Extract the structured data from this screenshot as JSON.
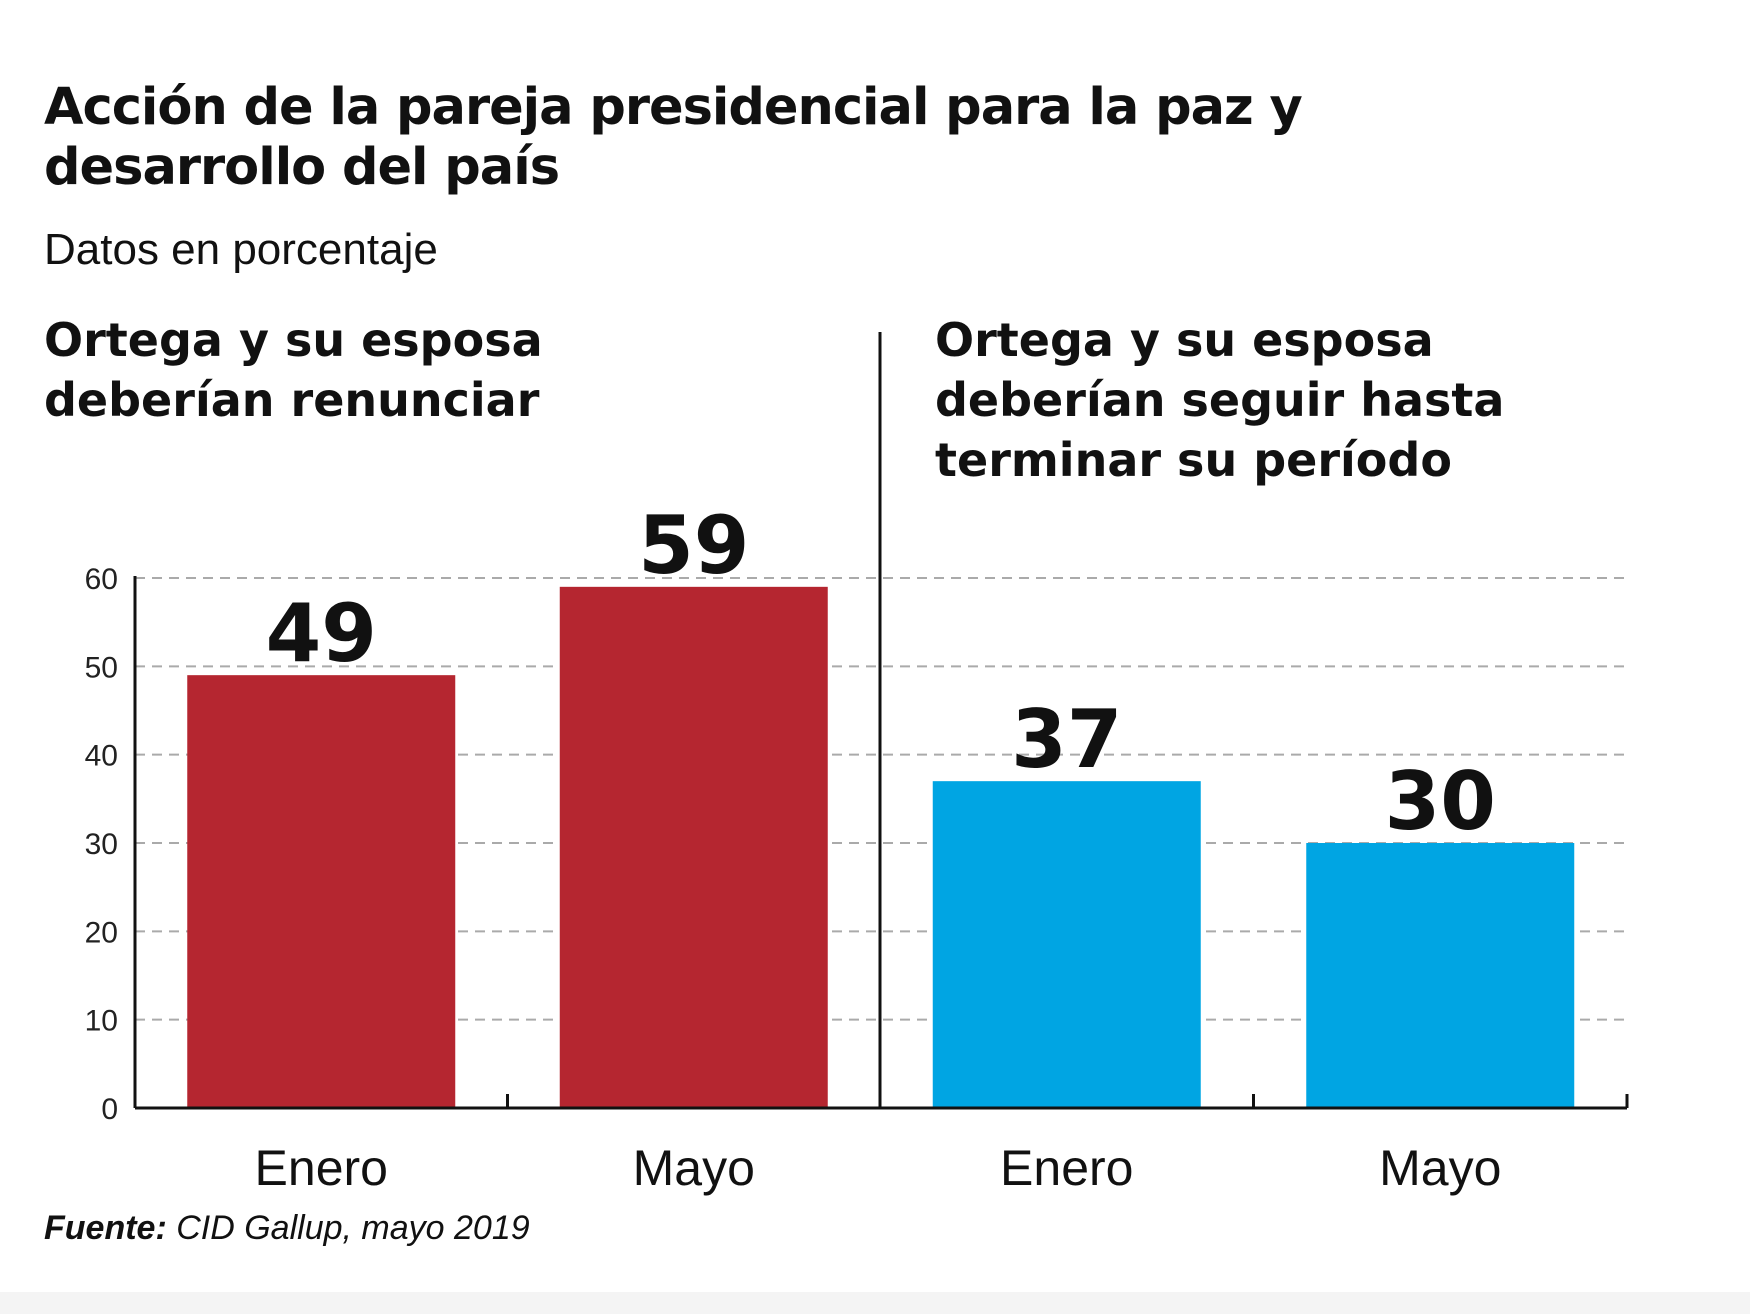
{
  "title": "Acción de la pareja presidencial para la paz y desarrollo del país",
  "subtitle": "Datos en porcentaje",
  "source": {
    "label": "Fuente:",
    "text": "CID Gallup, mayo 2019"
  },
  "colors": {
    "renunciar": "#b52630",
    "seguir": "#00a5e3",
    "axis": "#111111",
    "grid": "#aaaaaa"
  },
  "chart_data": [
    {
      "type": "bar",
      "title": "Ortega y su esposa deberían renunciar",
      "categories": [
        "Enero",
        "Mayo"
      ],
      "values": [
        49,
        59
      ],
      "color": "#b52630",
      "ylim": [
        0,
        60
      ],
      "yticks": [
        0,
        10,
        20,
        30,
        40,
        50,
        60
      ],
      "grid": true,
      "data_labels": true
    },
    {
      "type": "bar",
      "title": "Ortega y su esposa deberían seguir hasta terminar su período",
      "categories": [
        "Enero",
        "Mayo"
      ],
      "values": [
        37,
        30
      ],
      "color": "#00a5e3",
      "ylim": [
        0,
        60
      ],
      "yticks": [
        0,
        10,
        20,
        30,
        40,
        50,
        60
      ],
      "grid": true,
      "data_labels": true
    }
  ]
}
